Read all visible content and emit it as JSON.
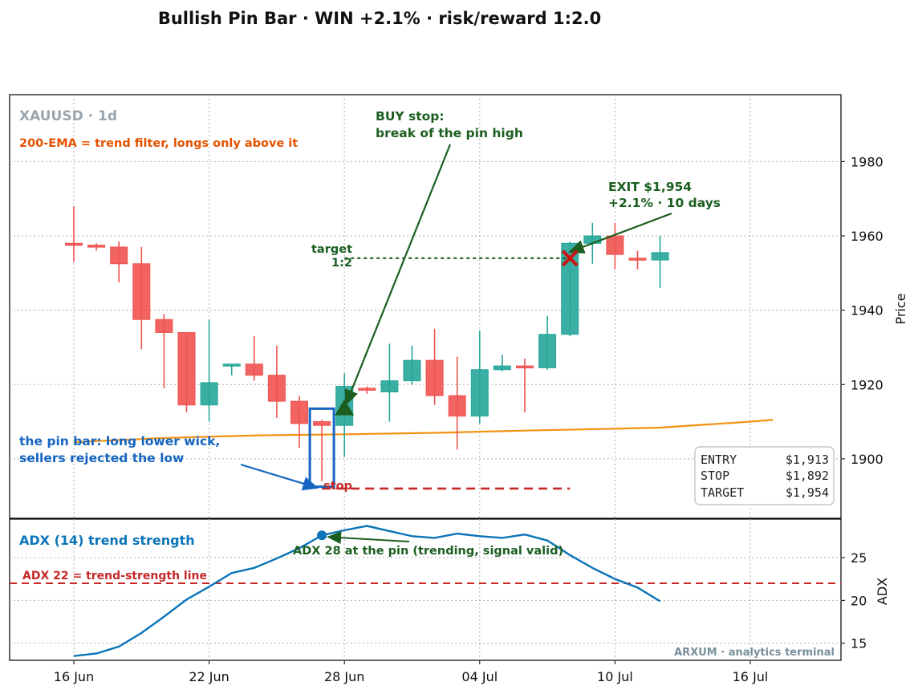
{
  "title": "Bullish Pin Bar · WIN +2.1% · risk/reward 1:2.0",
  "colors": {
    "bull": "#26a69a",
    "bear": "#ef5350",
    "ema": "#f39212",
    "adx": "#0a74b8",
    "annot_green": "#1b5e20",
    "stop_red": "#c62828",
    "pin_blue": "#1565c0",
    "ema_text": "#e65100",
    "muted": "#9aa5ad",
    "watermark": "#78909c"
  },
  "chart_data": [
    {
      "type": "candlestick",
      "panel": "price",
      "symbol_label": "XAUUSD · 1d",
      "ylabel": "Price",
      "ylim": [
        1884,
        1998
      ],
      "yticks": [
        1900,
        1920,
        1940,
        1960,
        1980
      ],
      "grid": true,
      "x_start": "2024-06-16",
      "xlim_days": [
        -4.5,
        26.5
      ],
      "xticks": [
        {
          "day": 0,
          "label": "16 Jun"
        },
        {
          "day": 6,
          "label": "22 Jun"
        },
        {
          "day": 12,
          "label": "28 Jun"
        },
        {
          "day": 18,
          "label": "04 Jul"
        },
        {
          "day": 24,
          "label": "10 Jul"
        },
        {
          "day": 30,
          "label": "16 Jul"
        }
      ],
      "candles": [
        {
          "date": "16 Jun",
          "o": 1958.0,
          "h": 1968.0,
          "l": 1953.0,
          "c": 1957.5
        },
        {
          "date": "17 Jun",
          "o": 1957.5,
          "h": 1958.0,
          "l": 1956.0,
          "c": 1957.0
        },
        {
          "date": "18 Jun",
          "o": 1957.0,
          "h": 1958.5,
          "l": 1947.5,
          "c": 1952.5
        },
        {
          "date": "19 Jun",
          "o": 1952.5,
          "h": 1957.0,
          "l": 1929.5,
          "c": 1937.5
        },
        {
          "date": "20 Jun",
          "o": 1937.5,
          "h": 1939.0,
          "l": 1919.0,
          "c": 1934.0
        },
        {
          "date": "21 Jun",
          "o": 1934.0,
          "h": 1934.0,
          "l": 1912.5,
          "c": 1914.5
        },
        {
          "date": "22 Jun",
          "o": 1914.5,
          "h": 1937.5,
          "l": 1910.0,
          "c": 1920.5
        },
        {
          "date": "23 Jun",
          "o": 1925.0,
          "h": 1925.5,
          "l": 1922.5,
          "c": 1925.5
        },
        {
          "date": "24 Jun",
          "o": 1925.5,
          "h": 1933.0,
          "l": 1921.0,
          "c": 1922.5
        },
        {
          "date": "25 Jun",
          "o": 1922.5,
          "h": 1930.5,
          "l": 1911.0,
          "c": 1915.5
        },
        {
          "date": "26 Jun",
          "o": 1915.5,
          "h": 1917.0,
          "l": 1903.0,
          "c": 1909.5
        },
        {
          "date": "27 Jun",
          "o": 1910.0,
          "h": 1910.5,
          "l": 1894.0,
          "c": 1909.0
        },
        {
          "date": "28 Jun",
          "o": 1909.0,
          "h": 1923.0,
          "l": 1900.5,
          "c": 1919.5
        },
        {
          "date": "29 Jun",
          "o": 1919.0,
          "h": 1919.5,
          "l": 1917.5,
          "c": 1918.5
        },
        {
          "date": "30 Jun",
          "o": 1918.0,
          "h": 1931.0,
          "l": 1910.0,
          "c": 1921.0
        },
        {
          "date": "01 Jul",
          "o": 1921.0,
          "h": 1930.5,
          "l": 1920.0,
          "c": 1926.5
        },
        {
          "date": "02 Jul",
          "o": 1926.5,
          "h": 1935.0,
          "l": 1914.5,
          "c": 1917.0
        },
        {
          "date": "03 Jul",
          "o": 1917.0,
          "h": 1927.5,
          "l": 1902.5,
          "c": 1911.5
        },
        {
          "date": "04 Jul",
          "o": 1911.5,
          "h": 1934.5,
          "l": 1909.5,
          "c": 1924.0
        },
        {
          "date": "05 Jul",
          "o": 1924.0,
          "h": 1928.0,
          "l": 1923.5,
          "c": 1925.0
        },
        {
          "date": "06 Jul",
          "o": 1925.0,
          "h": 1927.0,
          "l": 1912.5,
          "c": 1924.5
        },
        {
          "date": "07 Jul",
          "o": 1924.5,
          "h": 1938.5,
          "l": 1924.0,
          "c": 1933.5
        },
        {
          "date": "08 Jul",
          "o": 1933.5,
          "h": 1958.5,
          "l": 1933.0,
          "c": 1958.0
        },
        {
          "date": "09 Jul",
          "o": 1958.0,
          "h": 1963.5,
          "l": 1952.5,
          "c": 1960.0
        },
        {
          "date": "10 Jul",
          "o": 1960.0,
          "h": 1963.5,
          "l": 1951.0,
          "c": 1955.0
        },
        {
          "date": "11 Jul",
          "o": 1954.0,
          "h": 1956.0,
          "l": 1951.0,
          "c": 1953.5
        },
        {
          "date": "12 Jul",
          "o": 1953.5,
          "h": 1960.0,
          "l": 1946.0,
          "c": 1955.5
        }
      ],
      "ema": [
        {
          "x": 0,
          "y": 1904.5
        },
        {
          "x": 4,
          "y": 1905.6
        },
        {
          "x": 8,
          "y": 1906.3
        },
        {
          "x": 12,
          "y": 1906.6
        },
        {
          "x": 16,
          "y": 1907.0
        },
        {
          "x": 20,
          "y": 1907.6
        },
        {
          "x": 24,
          "y": 1908.1
        },
        {
          "x": 26,
          "y": 1908.4
        },
        {
          "x": 28,
          "y": 1909.2
        },
        {
          "x": 30,
          "y": 1910.0
        },
        {
          "x": 31,
          "y": 1910.5
        }
      ],
      "pin_candle_index": 11,
      "entry_index": 12,
      "exit_index": 22,
      "entry": 1913,
      "stop": 1892,
      "target": 1954,
      "stop_line_days": [
        11,
        22
      ],
      "target_line_days": [
        12,
        22
      ],
      "annotations": {
        "ema_note": "200-EMA = trend filter, longs only above it",
        "buy_note_line1": "BUY stop:",
        "buy_note_line2": "break of the pin high",
        "exit_line1": "EXIT $1,954",
        "exit_line2": "+2.1%  ·  10 days",
        "target_line1": "target",
        "target_line2": "1:2",
        "stop_label": "stop",
        "pin_line1": "the pin bar: long lower wick,",
        "pin_line2": "sellers rejected the low"
      },
      "summary_box": [
        {
          "key": "ENTRY",
          "value": "$1,913"
        },
        {
          "key": "STOP",
          "value": "$1,892"
        },
        {
          "key": "TARGET",
          "value": "$1,954"
        }
      ]
    },
    {
      "type": "line",
      "panel": "adx",
      "ylabel": "ADX",
      "ylim": [
        13,
        29.5
      ],
      "yticks": [
        15,
        20,
        25
      ],
      "grid": true,
      "series": [
        {
          "name": "ADX (14) trend strength",
          "x": [
            0,
            1,
            2,
            3,
            4,
            5,
            6,
            7,
            8,
            9,
            10,
            11,
            12,
            13,
            14,
            15,
            16,
            17,
            18,
            19,
            20,
            21,
            22,
            23,
            24,
            25,
            26
          ],
          "values": [
            13.5,
            13.8,
            14.6,
            16.2,
            18.1,
            20.1,
            21.6,
            23.2,
            23.8,
            24.9,
            26.1,
            27.6,
            28.2,
            28.7,
            28.1,
            27.5,
            27.3,
            27.8,
            27.5,
            27.3,
            27.7,
            27.0,
            25.3,
            23.8,
            22.5,
            21.5,
            19.9
          ]
        }
      ],
      "threshold": 22,
      "threshold_label": "ADX 22 = trend-strength line",
      "marker_index": 11,
      "marker_note": "ADX 28 at the pin (trending, signal valid)"
    }
  ],
  "watermark": "ARXUM · analytics terminal"
}
